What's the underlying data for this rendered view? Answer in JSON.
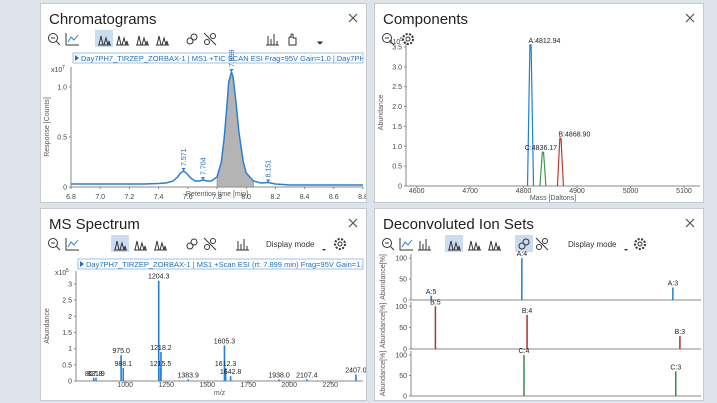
{
  "panels": [
    {
      "title": "Chromatograms",
      "header": "Day7PH7_TIRZEP_ZORBAX-1 | MS1 +TIC SCAN ESI Frag=95V Gain=1.0 | Day7PH7_TI",
      "chart": {
        "type": "line",
        "color": "#2a7fd4",
        "fill": "#b4b4b4",
        "x": [
          6.8,
          6.9,
          7.0,
          7.1,
          7.2,
          7.3,
          7.4,
          7.45,
          7.5,
          7.53,
          7.55,
          7.571,
          7.59,
          7.62,
          7.65,
          7.68,
          7.704,
          7.73,
          7.76,
          7.8,
          7.83,
          7.85,
          7.87,
          7.88,
          7.899,
          7.91,
          7.93,
          7.95,
          7.98,
          8.0,
          8.05,
          8.1,
          8.151,
          8.2,
          8.3,
          8.4,
          8.5,
          8.6,
          8.7,
          8.8
        ],
        "values": [
          0.03,
          0.03,
          0.03,
          0.03,
          0.03,
          0.03,
          0.035,
          0.04,
          0.06,
          0.1,
          0.14,
          0.16,
          0.14,
          0.09,
          0.06,
          0.06,
          0.07,
          0.06,
          0.06,
          0.1,
          0.25,
          0.5,
          0.85,
          1.05,
          1.15,
          1.1,
          0.85,
          0.55,
          0.25,
          0.14,
          0.06,
          0.04,
          0.045,
          0.03,
          0.02,
          0.02,
          0.02,
          0.02,
          0.02,
          0.02
        ],
        "integrated_range": [
          7.8,
          8.05
        ],
        "annotations": [
          {
            "x": 7.571,
            "y": 0.16,
            "label": "7.571"
          },
          {
            "x": 7.704,
            "y": 0.07,
            "label": "7.704"
          },
          {
            "x": 7.899,
            "y": 1.15,
            "label": "7.899"
          },
          {
            "x": 8.151,
            "y": 0.045,
            "label": "8.151"
          }
        ],
        "xlim": [
          6.8,
          8.8
        ],
        "xticks": [
          6.8,
          {
            "value": 7,
            "label": "7.0"
          },
          7.2,
          7.4,
          7.6,
          7.8,
          {
            "value": 8,
            "label": "8.0"
          },
          8.2,
          8.4,
          8.6,
          8.8
        ],
        "ylim": [
          0,
          1.2
        ],
        "yticks": [
          0,
          0.5,
          {
            "value": 1,
            "label": "1.0"
          }
        ],
        "multiplier": "x10",
        "exponent": "7",
        "xlabel": "Retention time [min]",
        "ylabel": "Response [Counts]"
      }
    },
    {
      "title": "Components",
      "chart": {
        "type": "spike",
        "x": [
          4812.94,
          4868.9,
          4836.17
        ],
        "values": [
          3.55,
          1.2,
          0.85
        ],
        "labels": [
          "A:4812.94",
          "B:4868.90",
          "C:4836.17"
        ],
        "colors": [
          "#1f7fd6",
          "#c0392b",
          "#3a9a4a"
        ],
        "xlim": [
          4580,
          5130
        ],
        "xticks": [
          4600,
          4700,
          4800,
          4900,
          5000,
          5100
        ],
        "ylim": [
          0,
          3.7
        ],
        "yticks": [
          0,
          0.5,
          {
            "value": 1,
            "label": "1.0"
          },
          1.5,
          {
            "value": 2,
            "label": "2.0"
          },
          2.5,
          {
            "value": 3,
            "label": "3.0"
          },
          3.5
        ],
        "multiplier": "x10",
        "exponent": "5",
        "xlabel": "Mass [Daltons]",
        "ylabel": "Abundance"
      }
    },
    {
      "title": "MS Spectrum",
      "header": "Day7PH7_TIRZEP_ZORBAX-1 | MS1 +Scan ESI (rt: 7.899 min) Frag=95V Gain=1.0 | Day7P",
      "display_mode": "Display mode",
      "chart": {
        "type": "stick",
        "color": "#2a7fd4",
        "x": [
          807.8,
          821.9,
          975.0,
          988.1,
          1204.3,
          1218.2,
          1215.5,
          1383.9,
          1605.3,
          1612.3,
          1642.8,
          1938.0,
          2107.4,
          2407.0
        ],
        "values": [
          0.1,
          0.1,
          0.8,
          0.4,
          3.1,
          0.9,
          0.4,
          0.05,
          1.1,
          0.4,
          0.15,
          0.05,
          0.05,
          0.2
        ],
        "value_labels": [
          "807.8",
          "821.9",
          "975.0",
          "988.1",
          "1204.3",
          "1218.2",
          "1215.5",
          "1383.9",
          "1605.3",
          "1612.3",
          "1642.8",
          "1938.0",
          "2107.4",
          "2407.0"
        ],
        "xlim": [
          700,
          2450
        ],
        "xticks": [
          1000,
          1250,
          1500,
          1750,
          2000,
          2250
        ],
        "ylim": [
          0,
          3.4
        ],
        "yticks": [
          0,
          0.5,
          1,
          1.5,
          2,
          2.5,
          3
        ],
        "multiplier": "x10",
        "exponent": "5",
        "xlabel": "m/z",
        "ylabel": "Abundance"
      }
    },
    {
      "title": "Deconvoluted Ion Sets",
      "display_mode": "Display mode",
      "chart": {
        "type": "stack",
        "xlim": [
          910,
          1680
        ],
        "ylim": [
          0,
          110
        ],
        "yticks": [
          0,
          50,
          100
        ],
        "ylabel": "Abundance[%]",
        "subplots": [
          {
            "color": "#1f7fd6",
            "x": [
              963.6,
              1204.3,
              1605.3
            ],
            "values": [
              10,
              100,
              30
            ],
            "labels": [
              "A:5",
              "A:4",
              "A:3"
            ]
          },
          {
            "color": "#b0302a",
            "x": [
              974.8,
              1218.2,
              1624.0
            ],
            "values": [
              100,
              80,
              30
            ],
            "labels": [
              "B:5",
              "B:4",
              "B:3"
            ]
          },
          {
            "color": "#2e8b4a",
            "x": [
              1210.0,
              1613.0
            ],
            "values": [
              100,
              60
            ],
            "labels": [
              "C:4",
              "C:3"
            ]
          }
        ]
      }
    }
  ]
}
